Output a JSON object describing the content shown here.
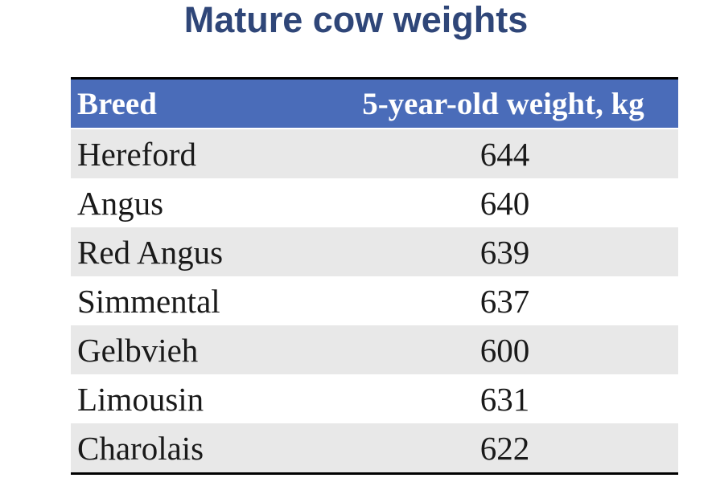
{
  "title": "Mature cow weights",
  "table": {
    "headers": {
      "breed": "Breed",
      "weight": "5-year-old weight, kg"
    },
    "rows": [
      {
        "breed": "Hereford",
        "weight": "644"
      },
      {
        "breed": "Angus",
        "weight": "640"
      },
      {
        "breed": "Red Angus",
        "weight": "639"
      },
      {
        "breed": "Simmental",
        "weight": "637"
      },
      {
        "breed": "Gelbvieh",
        "weight": "600"
      },
      {
        "breed": "Limousin",
        "weight": "631"
      },
      {
        "breed": "Charolais",
        "weight": "622"
      }
    ]
  },
  "colors": {
    "title": "#2f4678",
    "header_background": "#4a6cb9",
    "header_text": "#ffffff",
    "stripe": "#e8e8e8"
  }
}
